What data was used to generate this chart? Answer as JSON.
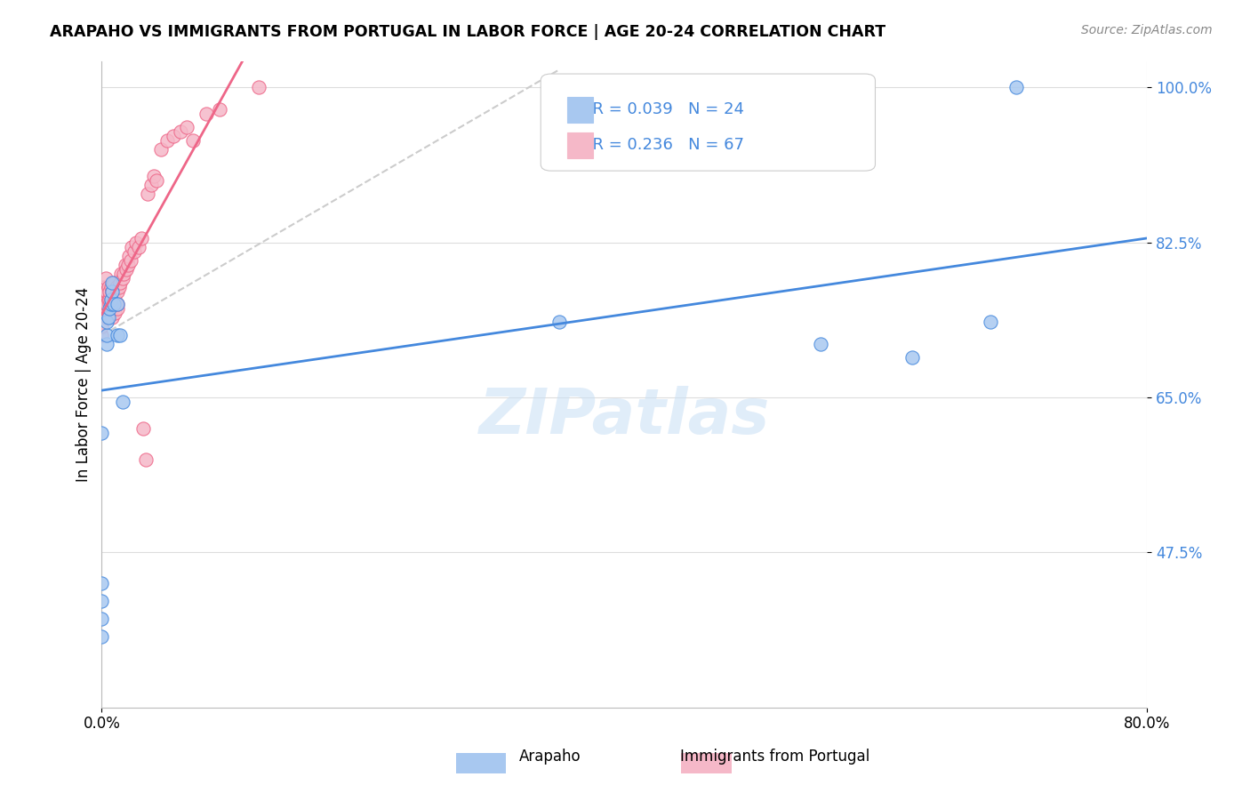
{
  "title": "ARAPAHO VS IMMIGRANTS FROM PORTUGAL IN LABOR FORCE | AGE 20-24 CORRELATION CHART",
  "source": "Source: ZipAtlas.com",
  "xlabel_bottom": "",
  "ylabel": "In Labor Force | Age 20-24",
  "x_tick_labels": [
    "0.0%",
    "80.0%"
  ],
  "y_tick_labels": [
    "100.0%",
    "82.5%",
    "65.0%",
    "47.5%"
  ],
  "xlim": [
    0.0,
    0.8
  ],
  "ylim": [
    0.3,
    1.03
  ],
  "legend_labels": [
    "Arapaho",
    "Immigrants from Portugal"
  ],
  "arapaho_R": "R = 0.039",
  "arapaho_N": "N = 24",
  "portugal_R": "R = 0.236",
  "portugal_N": "N = 67",
  "arapaho_color": "#a8c8f0",
  "portugal_color": "#f5b8c8",
  "arapaho_line_color": "#4488dd",
  "portugal_line_color": "#ee6688",
  "diagonal_color": "#cccccc",
  "watermark": "ZIPatlas",
  "arapaho_x": [
    0.0,
    0.0,
    0.0,
    0.0,
    0.0,
    0.004,
    0.004,
    0.004,
    0.005,
    0.006,
    0.007,
    0.007,
    0.008,
    0.008,
    0.009,
    0.012,
    0.012,
    0.014,
    0.016,
    0.35,
    0.55,
    0.62,
    0.68,
    0.7
  ],
  "arapaho_y": [
    0.38,
    0.4,
    0.42,
    0.44,
    0.61,
    0.71,
    0.72,
    0.735,
    0.74,
    0.75,
    0.755,
    0.76,
    0.77,
    0.78,
    0.755,
    0.755,
    0.72,
    0.72,
    0.645,
    0.735,
    0.71,
    0.695,
    0.735,
    1.0
  ],
  "portugal_x": [
    0.0,
    0.0,
    0.0,
    0.0,
    0.0,
    0.0,
    0.001,
    0.001,
    0.002,
    0.002,
    0.003,
    0.003,
    0.003,
    0.003,
    0.004,
    0.004,
    0.004,
    0.005,
    0.005,
    0.006,
    0.006,
    0.006,
    0.007,
    0.007,
    0.007,
    0.008,
    0.008,
    0.008,
    0.009,
    0.009,
    0.01,
    0.01,
    0.011,
    0.011,
    0.012,
    0.012,
    0.012,
    0.013,
    0.014,
    0.015,
    0.016,
    0.017,
    0.018,
    0.019,
    0.02,
    0.021,
    0.022,
    0.023,
    0.025,
    0.026,
    0.028,
    0.03,
    0.032,
    0.034,
    0.035,
    0.038,
    0.04,
    0.042,
    0.045,
    0.05,
    0.055,
    0.06,
    0.065,
    0.07,
    0.08,
    0.09,
    0.12
  ],
  "portugal_y": [
    0.72,
    0.73,
    0.745,
    0.75,
    0.755,
    0.76,
    0.755,
    0.77,
    0.76,
    0.775,
    0.75,
    0.755,
    0.77,
    0.785,
    0.74,
    0.755,
    0.77,
    0.76,
    0.775,
    0.755,
    0.76,
    0.77,
    0.75,
    0.76,
    0.775,
    0.74,
    0.75,
    0.77,
    0.755,
    0.78,
    0.745,
    0.76,
    0.755,
    0.775,
    0.75,
    0.755,
    0.77,
    0.775,
    0.78,
    0.79,
    0.785,
    0.79,
    0.8,
    0.795,
    0.8,
    0.81,
    0.805,
    0.82,
    0.815,
    0.825,
    0.82,
    0.83,
    0.615,
    0.58,
    0.88,
    0.89,
    0.9,
    0.895,
    0.93,
    0.94,
    0.945,
    0.95,
    0.955,
    0.94,
    0.97,
    0.975,
    1.0
  ]
}
